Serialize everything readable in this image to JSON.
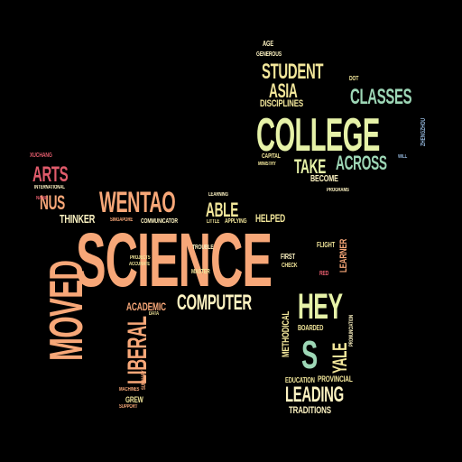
{
  "palette": {
    "background": "#000000",
    "orange": "#f7a778",
    "yellow": "#f2e69a",
    "cream": "#fdf3c2",
    "green": "#e6f2a8",
    "teal": "#9dd7b6",
    "blue": "#90b2d6",
    "red": "#e15b6b",
    "white": "#f5f5f0"
  },
  "words": [
    {
      "id": "science",
      "text": "SCIENCE"
    },
    {
      "id": "college",
      "text": "COLLEGE"
    },
    {
      "id": "moved",
      "text": "MOVED"
    },
    {
      "id": "wentao",
      "text": "WENTAO"
    },
    {
      "id": "computer",
      "text": "COMPUTER"
    },
    {
      "id": "hey",
      "text": "HEY"
    },
    {
      "id": "s",
      "text": "S"
    },
    {
      "id": "liberal",
      "text": "LIBERAL"
    },
    {
      "id": "leading",
      "text": "LEADING"
    },
    {
      "id": "student",
      "text": "STUDENT"
    },
    {
      "id": "asia",
      "text": "ASIA"
    },
    {
      "id": "classes",
      "text": "CLASSES"
    },
    {
      "id": "take",
      "text": "TAKE"
    },
    {
      "id": "across",
      "text": "ACROSS"
    },
    {
      "id": "arts",
      "text": "ARTS"
    },
    {
      "id": "nus",
      "text": "NUS"
    },
    {
      "id": "able",
      "text": "ABLE"
    },
    {
      "id": "yale",
      "text": "YALE"
    },
    {
      "id": "thinker",
      "text": "THINKER"
    },
    {
      "id": "helped",
      "text": "HELPED"
    },
    {
      "id": "academic",
      "text": "ACADEMIC"
    },
    {
      "id": "disciplines",
      "text": "DISCIPLINES"
    },
    {
      "id": "methodical",
      "text": "METHODICAL"
    },
    {
      "id": "learner",
      "text": "LEARNER"
    },
    {
      "id": "traditions",
      "text": "TRADITIONS"
    },
    {
      "id": "become",
      "text": "BECOME"
    },
    {
      "id": "education",
      "text": "EDUCATION"
    },
    {
      "id": "provincial",
      "text": "PROVINCIAL"
    },
    {
      "id": "grew",
      "text": "GREW"
    },
    {
      "id": "boarded",
      "text": "BOARDED"
    },
    {
      "id": "first",
      "text": "FIRST"
    },
    {
      "id": "check",
      "text": "CHECK"
    },
    {
      "id": "flight",
      "text": "FLIGHT"
    },
    {
      "id": "red",
      "text": "RED"
    },
    {
      "id": "age",
      "text": "AGE"
    },
    {
      "id": "generous",
      "text": "GENEROUS"
    },
    {
      "id": "dot",
      "text": "DOT"
    },
    {
      "id": "zhengzhou",
      "text": "ZHENGZHOU"
    },
    {
      "id": "will",
      "text": "WILL"
    },
    {
      "id": "capital",
      "text": "CAPITAL"
    },
    {
      "id": "ministry",
      "text": "MINISTRY"
    },
    {
      "id": "programs",
      "text": "PROGRAMS"
    },
    {
      "id": "xuchang",
      "text": "XUCHANG"
    },
    {
      "id": "international",
      "text": "INTERNATIONAL"
    },
    {
      "id": "name",
      "text": "NAME"
    },
    {
      "id": "singapore",
      "text": "SINGAPORE"
    },
    {
      "id": "communicator",
      "text": "COMMUNICATOR"
    },
    {
      "id": "learning",
      "text": "LEARNING"
    },
    {
      "id": "little",
      "text": "LITTLE"
    },
    {
      "id": "applying",
      "text": "APPLYING"
    },
    {
      "id": "trouble",
      "text": "TROUBLE"
    },
    {
      "id": "projects",
      "text": "PROJECTS"
    },
    {
      "id": "accurate",
      "text": "ACCURATE"
    },
    {
      "id": "master",
      "text": "MASTER"
    },
    {
      "id": "data",
      "text": "DATA"
    },
    {
      "id": "machines",
      "text": "MACHINES"
    },
    {
      "id": "support",
      "text": "SUPPORT"
    },
    {
      "id": "pronunciation",
      "text": "PRONUNCIATION"
    },
    {
      "id": "summary",
      "text": "SUMMARY"
    }
  ]
}
